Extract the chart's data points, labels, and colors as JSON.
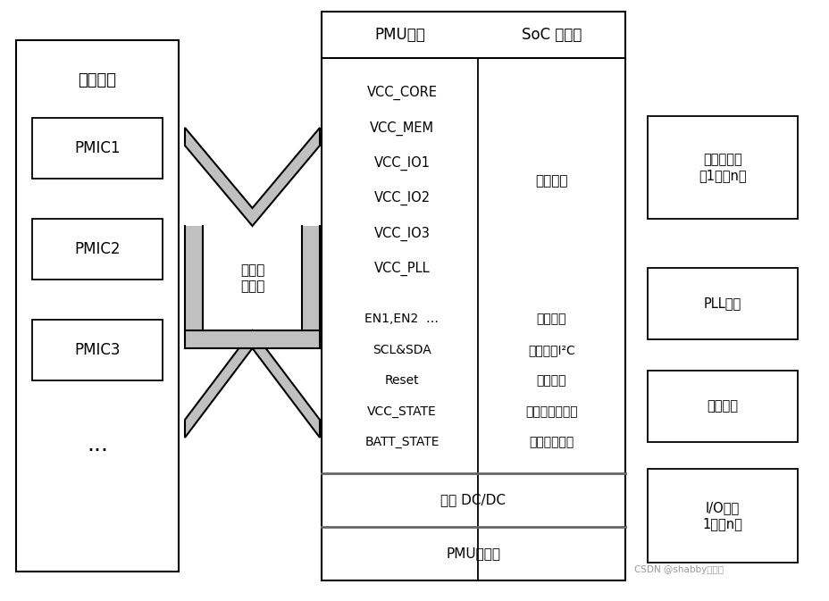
{
  "supply_label": "供电系统",
  "bus_label": "电源管\n理总线",
  "pmic_labels": [
    "PMIC1",
    "PMIC2",
    "PMIC3"
  ],
  "pmu_title": "PMU单元",
  "soc_title": "SoC 处理器",
  "pmu_lines_top": [
    "VCC_CORE",
    "VCC_MEM",
    "VCC_IO1",
    "VCC_IO2",
    "VCC_IO3",
    "VCC_PLL"
  ],
  "pmu_lines_bottom": [
    "EN1,EN2  …",
    "SCL&SDA",
    "Reset",
    "VCC_STATE",
    "BATT_STATE"
  ],
  "multi_power_label": "多档电源",
  "control_labels": [
    "使能信号",
    "数字接口I²C",
    "复位信号",
    "主电源状态指示",
    "电池状态指示"
  ],
  "dc_dc_label": "内部 DC/DC",
  "register_label": "PMU寄存器",
  "soc_boxes": [
    "处理器核单\n刔1个～n个",
    "PLL单元",
    "存储单元",
    "I/O设备\n1个～n个"
  ],
  "watermark": "CSDN @shabby爱学习",
  "ellipsis": "……"
}
